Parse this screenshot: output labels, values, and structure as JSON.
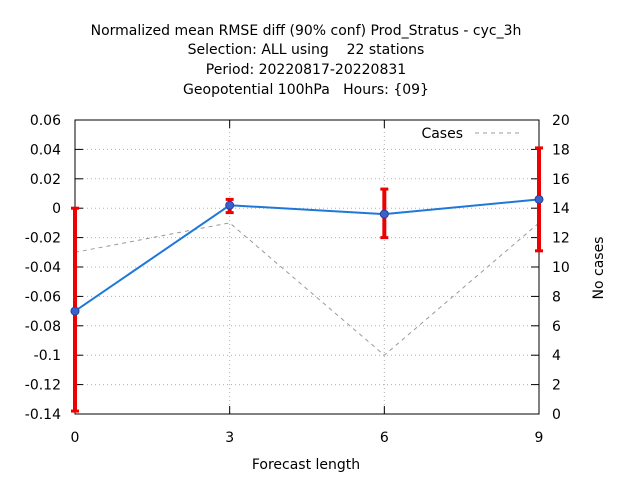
{
  "chart_data": {
    "type": "line",
    "title_lines": [
      "Normalized mean RMSE diff (90% conf) Prod_Stratus - cyc_3h",
      "Selection: ALL using    22 stations",
      "Period: 20220817-20220831",
      "Geopotential 100hPa   Hours: {09}"
    ],
    "xlabel": "Forecast length",
    "ylabel": "",
    "y2label": "No cases",
    "x": [
      0,
      3,
      6,
      9
    ],
    "xlim": [
      0,
      9
    ],
    "ylim": [
      -0.14,
      0.06
    ],
    "y2lim": [
      0,
      20
    ],
    "x_ticks": [
      "0",
      "3",
      "6",
      "9"
    ],
    "y_ticks": [
      "0.06",
      "0.04",
      "0.02",
      "0",
      "-0.02",
      "-0.04",
      "-0.06",
      "-0.08",
      "-0.1",
      "-0.12",
      "-0.14"
    ],
    "y2_ticks": [
      "20",
      "18",
      "16",
      "14",
      "12",
      "10",
      "8",
      "6",
      "4",
      "2",
      "0"
    ],
    "grid": true,
    "legend_position": "top-right",
    "series": [
      {
        "values": [
          -0.07,
          0.002,
          -0.004,
          0.006
        ],
        "err_low": [
          -0.138,
          -0.003,
          -0.02,
          -0.029
        ],
        "err_high": [
          0.0,
          0.006,
          0.013,
          0.041
        ],
        "color": "#1f78d8",
        "err_color": "#ee0000",
        "axis": "left"
      },
      {
        "name": "Cases",
        "values": [
          11,
          13,
          4,
          13
        ],
        "color": "#999999",
        "axis": "right",
        "style": "dashed"
      }
    ]
  }
}
